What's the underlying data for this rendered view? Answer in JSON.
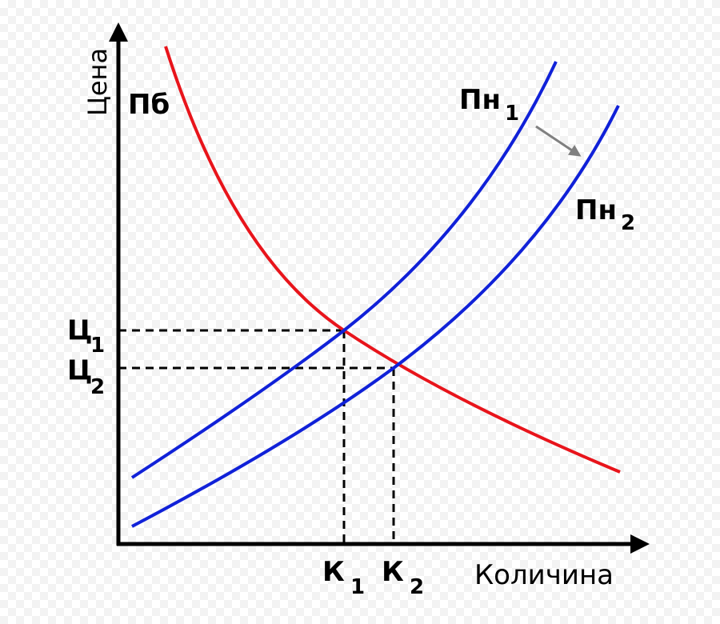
{
  "axes": {
    "y_label": "Цена",
    "x_label": "Количина"
  },
  "curves": [
    {
      "label": "Пб"
    },
    {
      "label": "Пн",
      "subscript": "1"
    },
    {
      "label": "Пн",
      "subscript": "2"
    }
  ],
  "price_levels": [
    {
      "label": "Ц",
      "subscript": "1"
    },
    {
      "label": "Ц",
      "subscript": "2"
    }
  ],
  "quantity_levels": [
    {
      "label": "К",
      "subscript": "1"
    },
    {
      "label": "К",
      "subscript": "2"
    }
  ]
}
